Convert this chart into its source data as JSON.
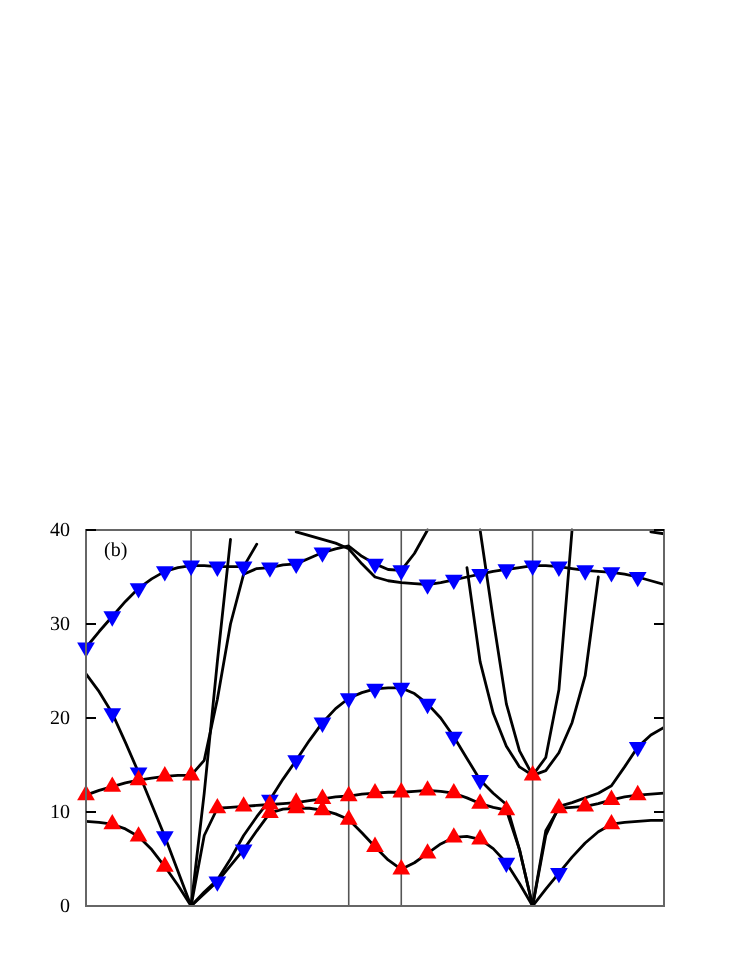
{
  "chart_data": {
    "type": "line",
    "annotations": [
      "(b)"
    ],
    "categories": [
      null,
      null,
      null,
      null,
      null,
      null,
      null,
      null,
      null,
      null,
      null,
      null,
      null,
      null,
      null,
      null,
      null,
      null,
      null,
      null,
      null,
      null,
      null,
      null,
      null,
      null,
      null,
      null,
      null,
      null,
      null,
      null,
      null,
      null,
      null,
      null,
      null,
      null,
      null,
      null,
      null,
      null,
      null,
      null,
      null
    ],
    "ylim": [
      0,
      40
    ],
    "yticks": [
      0,
      10,
      20,
      30,
      40
    ],
    "tick_labels": "y",
    "grid": "x",
    "marker": "none",
    "line_style": "solid",
    "series": [
      {
        "color": "#000000",
        "values": [
          9.0,
          8.9,
          8.7,
          8.2,
          7.4,
          6.0,
          4.2,
          2.2,
          0,
          1.3,
          2.6,
          4.3,
          6.0,
          8.0,
          9.9,
          10.3,
          10.4,
          10.4,
          10.2,
          9.8,
          9.2,
          7.8,
          6.3,
          4.9,
          3.9,
          4.6,
          5.6,
          6.6,
          7.3,
          7.4,
          7.1,
          6.1,
          4.6,
          2.4,
          0,
          1.8,
          3.5,
          5.2,
          6.7,
          7.9,
          8.7,
          8.9,
          9.0,
          9.1,
          9.1
        ]
      },
      {
        "color": "#000000",
        "values": [
          24.7,
          22.8,
          20.5,
          17.4,
          14.2,
          10.8,
          7.4,
          3.7,
          0,
          7.5,
          10.4,
          10.5,
          10.6,
          10.7,
          10.8,
          10.9,
          11.0,
          11.2,
          11.4,
          11.6,
          11.7,
          11.9,
          12.0,
          12.1,
          12.1,
          12.2,
          12.3,
          12.2,
          12.0,
          11.5,
          10.9,
          10.5,
          10.2,
          6.0,
          0,
          8.0,
          10.4,
          10.5,
          10.6,
          10.9,
          11.3,
          11.6,
          11.8,
          11.9,
          12.0
        ]
      },
      {
        "color": "#000000",
        "values": [
          null,
          null,
          null,
          null,
          null,
          null,
          null,
          null,
          0,
          1.5,
          2.8,
          5.0,
          7.5,
          9.5,
          11.3,
          13.5,
          15.5,
          17.6,
          19.5,
          21.0,
          22.1,
          22.7,
          23.1,
          23.2,
          23.2,
          22.6,
          21.5,
          20.0,
          18.0,
          15.7,
          13.4,
          12.0,
          10.8,
          6.0,
          0,
          7.5,
          10.6,
          11.0,
          11.5,
          12.0,
          12.8,
          14.8,
          16.9,
          18.2,
          19.0
        ]
      },
      {
        "color": "#000000",
        "values": [
          11.8,
          12.3,
          12.7,
          13.1,
          13.4,
          13.6,
          13.8,
          13.9,
          13.9,
          15.5,
          22,
          30,
          35.3,
          35.9,
          36.0,
          36.3,
          36.4,
          37.0,
          37.6,
          38.0,
          38.3,
          37.2,
          36.4,
          35.8,
          35.7,
          37.5,
          40,
          null,
          null,
          null,
          null,
          null,
          null,
          null,
          null,
          null,
          null,
          null,
          null,
          null,
          null,
          null,
          null,
          null,
          null
        ]
      },
      {
        "color": "#000000",
        "values": [
          null,
          null,
          null,
          null,
          null,
          null,
          null,
          null,
          0,
          12,
          26,
          39,
          null,
          null,
          null,
          null,
          null,
          null,
          null,
          null,
          null,
          null,
          null,
          null,
          null,
          null,
          null,
          null,
          null,
          null,
          null,
          null,
          null,
          null,
          null,
          null,
          null,
          null,
          null,
          null,
          null,
          null,
          null,
          null,
          null
        ]
      },
      {
        "color": "#000000",
        "values": [
          27.5,
          29.2,
          30.8,
          32.4,
          33.8,
          34.8,
          35.6,
          36.0,
          36.2,
          36.2,
          36.1,
          36.1,
          36.1,
          38.5,
          null,
          null,
          null,
          null,
          null,
          null,
          null,
          null,
          null,
          null,
          null,
          null,
          null,
          null,
          null,
          null,
          null,
          null,
          null,
          null,
          null,
          null,
          null,
          null,
          null,
          null,
          null,
          null,
          null,
          null,
          null
        ]
      },
      {
        "color": "#000000",
        "values": [
          null,
          null,
          null,
          null,
          null,
          null,
          null,
          null,
          null,
          null,
          null,
          null,
          null,
          null,
          null,
          null,
          39.8,
          39.4,
          39.0,
          38.6,
          38.0,
          36.4,
          35.0,
          34.6,
          34.4,
          34.3,
          34.2,
          34.4,
          34.7,
          35.0,
          35.3,
          35.6,
          35.8,
          36.0,
          36.2,
          36.2,
          36.1,
          35.9,
          35.7,
          35.6,
          35.5,
          35.3,
          35.0,
          34.6,
          34.2
        ]
      },
      {
        "color": "#000000",
        "values": [
          null,
          null,
          null,
          null,
          null,
          null,
          null,
          null,
          null,
          null,
          null,
          null,
          null,
          null,
          null,
          null,
          null,
          null,
          null,
          null,
          null,
          null,
          null,
          null,
          null,
          null,
          null,
          null,
          null,
          36,
          26,
          20.5,
          17,
          14.8,
          13.9,
          14.4,
          16.3,
          19.5,
          24.5,
          35,
          null,
          null,
          null,
          null,
          null
        ]
      },
      {
        "color": "#000000",
        "values": [
          null,
          null,
          null,
          null,
          null,
          null,
          null,
          null,
          null,
          null,
          null,
          null,
          null,
          null,
          null,
          null,
          null,
          null,
          null,
          null,
          null,
          null,
          null,
          null,
          null,
          null,
          null,
          null,
          null,
          null,
          40,
          30.5,
          21.5,
          16.5,
          13.9,
          15.8,
          23,
          40,
          null,
          null,
          null,
          null,
          null,
          null,
          null
        ]
      },
      {
        "color": "#000000",
        "values": [
          null,
          null,
          null,
          null,
          null,
          null,
          null,
          null,
          null,
          null,
          null,
          null,
          null,
          null,
          null,
          null,
          null,
          null,
          null,
          null,
          null,
          null,
          null,
          null,
          null,
          null,
          null,
          null,
          null,
          null,
          null,
          null,
          null,
          null,
          null,
          null,
          null,
          null,
          null,
          null,
          null,
          null,
          null,
          39.8,
          39.6
        ]
      },
      {
        "type": "scatter",
        "marker": "triangle-down",
        "color": "#0000ff",
        "values": [
          27.5,
          null,
          30.8,
          null,
          33.8,
          null,
          35.6,
          null,
          36.2,
          null,
          36.1,
          null,
          36.1,
          null,
          36.0,
          null,
          36.4,
          null,
          37.6,
          null,
          null,
          null,
          36.4,
          null,
          35.7,
          null,
          34.2,
          null,
          34.7,
          null,
          35.3,
          null,
          35.8,
          null,
          36.2,
          null,
          36.1,
          null,
          35.7,
          null,
          35.5,
          null,
          35.0,
          null,
          null
        ]
      },
      {
        "type": "scatter",
        "marker": "triangle-down",
        "color": "#0000ff",
        "values": [
          null,
          null,
          20.5,
          null,
          14.2,
          null,
          7.4,
          null,
          null,
          null,
          2.6,
          null,
          6.0,
          null,
          11.3,
          null,
          15.5,
          null,
          19.5,
          null,
          22.1,
          null,
          23.1,
          null,
          23.2,
          null,
          21.5,
          null,
          18.0,
          null,
          13.4,
          null,
          4.6,
          null,
          null,
          null,
          3.5,
          null,
          null,
          null,
          null,
          null,
          16.9,
          null,
          null
        ]
      },
      {
        "type": "scatter",
        "marker": "triangle",
        "color": "#ff0000",
        "values": [
          11.8,
          null,
          12.7,
          null,
          13.4,
          null,
          13.8,
          null,
          13.9,
          null,
          10.4,
          null,
          10.6,
          null,
          10.8,
          null,
          11.0,
          null,
          11.4,
          null,
          11.7,
          null,
          12.0,
          null,
          12.1,
          null,
          12.3,
          null,
          12.0,
          null,
          10.9,
          null,
          10.2,
          null,
          13.9,
          null,
          10.4,
          null,
          10.6,
          null,
          11.3,
          null,
          11.8,
          null,
          null
        ]
      },
      {
        "type": "scatter",
        "marker": "triangle",
        "color": "#ff0000",
        "values": [
          null,
          null,
          8.7,
          null,
          7.4,
          null,
          4.2,
          null,
          null,
          null,
          null,
          null,
          null,
          null,
          9.9,
          null,
          10.4,
          null,
          10.2,
          null,
          9.2,
          null,
          6.3,
          null,
          3.9,
          null,
          5.6,
          null,
          7.3,
          null,
          7.1,
          null,
          null,
          null,
          null,
          null,
          null,
          null,
          null,
          null,
          8.7,
          null,
          null,
          null,
          null
        ]
      }
    ]
  }
}
